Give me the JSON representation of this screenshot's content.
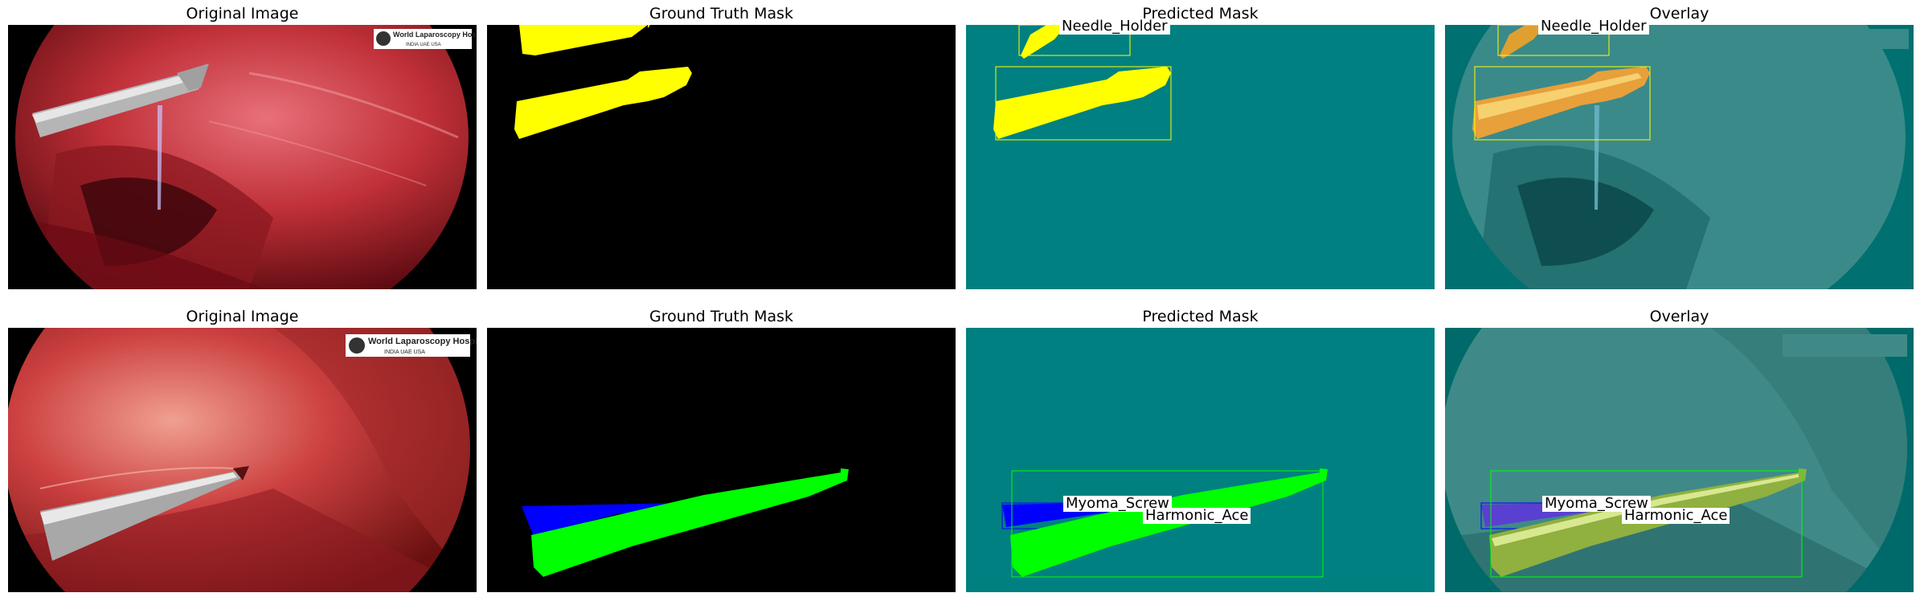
{
  "titles": {
    "original": "Original Image",
    "gt": "Ground Truth Mask",
    "pred": "Predicted Mask",
    "overlay": "Overlay"
  },
  "logo": {
    "name": "World Laparoscopy Hospital",
    "countries": "INDIA  UAE  USA"
  },
  "row1": {
    "labels": [
      "Needle_Holder"
    ],
    "mask_color": "#ffff00"
  },
  "row2": {
    "labels": [
      "Myoma_Screw",
      "Harmonic_Ace"
    ],
    "myoma_color": "#0000ff",
    "harmonic_color": "#00ff00"
  },
  "colors": {
    "pred_bg": "#008080",
    "gt_bg": "#000000",
    "tissue": "#c0303a"
  }
}
